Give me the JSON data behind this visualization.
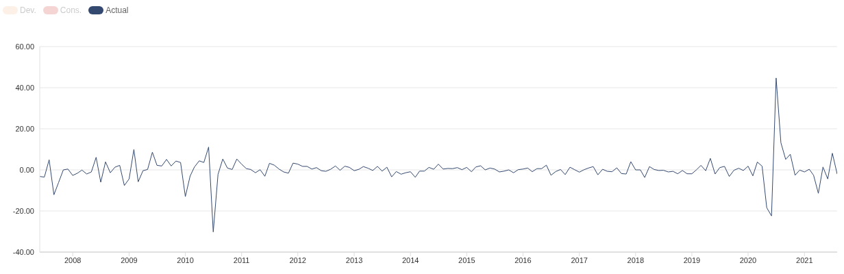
{
  "chart_data": {
    "type": "line",
    "x": [
      "2007-06",
      "2007-07",
      "2007-08",
      "2007-09",
      "2007-10",
      "2007-11",
      "2007-12",
      "2008-01",
      "2008-02",
      "2008-03",
      "2008-04",
      "2008-05",
      "2008-06",
      "2008-07",
      "2008-08",
      "2008-09",
      "2008-10",
      "2008-11",
      "2008-12",
      "2009-01",
      "2009-02",
      "2009-03",
      "2009-04",
      "2009-05",
      "2009-06",
      "2009-07",
      "2009-08",
      "2009-09",
      "2009-10",
      "2009-11",
      "2009-12",
      "2010-01",
      "2010-02",
      "2010-03",
      "2010-04",
      "2010-05",
      "2010-06",
      "2010-07",
      "2010-08",
      "2010-09",
      "2010-10",
      "2010-11",
      "2010-12",
      "2011-01",
      "2011-02",
      "2011-03",
      "2011-04",
      "2011-05",
      "2011-06",
      "2011-07",
      "2011-08",
      "2011-09",
      "2011-10",
      "2011-11",
      "2011-12",
      "2012-01",
      "2012-02",
      "2012-03",
      "2012-04",
      "2012-05",
      "2012-06",
      "2012-07",
      "2012-08",
      "2012-09",
      "2012-10",
      "2012-11",
      "2012-12",
      "2013-01",
      "2013-02",
      "2013-03",
      "2013-04",
      "2013-05",
      "2013-06",
      "2013-07",
      "2013-08",
      "2013-09",
      "2013-10",
      "2013-11",
      "2013-12",
      "2014-01",
      "2014-02",
      "2014-03",
      "2014-04",
      "2014-05",
      "2014-06",
      "2014-07",
      "2014-08",
      "2014-09",
      "2014-10",
      "2014-11",
      "2014-12",
      "2015-01",
      "2015-02",
      "2015-03",
      "2015-04",
      "2015-05",
      "2015-06",
      "2015-07",
      "2015-08",
      "2015-09",
      "2015-10",
      "2015-11",
      "2015-12",
      "2016-01",
      "2016-02",
      "2016-03",
      "2016-04",
      "2016-05",
      "2016-06",
      "2016-07",
      "2016-08",
      "2016-09",
      "2016-10",
      "2016-11",
      "2016-12",
      "2017-01",
      "2017-02",
      "2017-03",
      "2017-04",
      "2017-05",
      "2017-06",
      "2017-07",
      "2017-08",
      "2017-09",
      "2017-10",
      "2017-11",
      "2017-12",
      "2018-01",
      "2018-02",
      "2018-03",
      "2018-04",
      "2018-05",
      "2018-06",
      "2018-07",
      "2018-08",
      "2018-09",
      "2018-10",
      "2018-11",
      "2018-12",
      "2019-01",
      "2019-02",
      "2019-03",
      "2019-04",
      "2019-05",
      "2019-06",
      "2019-07",
      "2019-08",
      "2019-09",
      "2019-10",
      "2019-11",
      "2019-12",
      "2020-01",
      "2020-02",
      "2020-03",
      "2020-04",
      "2020-05",
      "2020-06",
      "2020-07",
      "2020-08",
      "2020-09",
      "2020-10",
      "2020-11",
      "2020-12",
      "2021-01",
      "2021-02",
      "2021-03",
      "2021-04",
      "2021-05",
      "2021-06",
      "2021-07",
      "2021-08"
    ],
    "series": [
      {
        "name": "Dev.",
        "color": "#fdf0e6",
        "values": [
          null,
          null,
          null,
          null,
          null,
          null,
          null,
          null,
          null,
          null,
          null,
          null,
          null,
          null,
          null,
          null,
          null,
          null,
          null,
          null,
          null,
          null,
          null,
          null,
          null,
          null,
          null,
          null,
          null,
          null,
          null,
          null,
          null,
          null,
          null,
          null,
          null,
          null,
          null,
          null,
          null,
          null,
          null,
          null,
          null,
          null,
          null,
          null,
          null,
          null,
          null,
          null,
          null,
          null,
          null,
          null,
          null,
          null,
          null,
          null,
          null,
          null,
          null,
          null,
          null,
          null,
          null,
          null,
          null,
          null,
          null,
          null,
          null,
          null,
          null,
          null,
          null,
          null,
          null,
          null,
          null,
          null,
          null,
          null,
          null,
          null,
          null,
          null,
          null,
          null,
          null,
          null,
          null,
          null,
          null,
          null,
          null,
          null,
          null,
          null,
          null,
          null,
          null,
          null,
          null,
          null,
          null,
          null,
          null,
          null,
          null,
          null,
          null,
          null,
          null,
          null,
          null,
          null,
          null,
          null,
          null,
          null,
          null,
          null,
          null,
          null,
          null,
          null,
          null,
          null,
          null,
          null,
          null,
          null,
          null,
          null,
          null,
          null,
          null,
          null,
          null,
          null,
          null,
          null,
          null,
          null,
          null,
          null,
          null,
          null,
          null,
          null,
          null,
          null,
          null,
          null,
          null,
          null,
          null,
          null,
          null,
          null,
          null,
          null,
          null,
          null,
          null,
          null,
          null,
          null,
          null
        ]
      },
      {
        "name": "Cons.",
        "color": "#f5d5d3",
        "values": [
          null,
          null,
          null,
          null,
          null,
          null,
          null,
          null,
          null,
          null,
          null,
          null,
          null,
          null,
          null,
          null,
          null,
          null,
          null,
          null,
          null,
          null,
          null,
          null,
          null,
          null,
          null,
          null,
          null,
          null,
          null,
          null,
          null,
          null,
          null,
          null,
          null,
          null,
          null,
          null,
          null,
          null,
          null,
          null,
          null,
          null,
          null,
          null,
          null,
          null,
          null,
          null,
          null,
          null,
          null,
          null,
          null,
          null,
          null,
          null,
          null,
          null,
          null,
          null,
          null,
          null,
          null,
          null,
          null,
          null,
          null,
          null,
          null,
          null,
          null,
          null,
          null,
          null,
          null,
          null,
          null,
          null,
          null,
          null,
          null,
          null,
          null,
          null,
          null,
          null,
          null,
          null,
          null,
          null,
          null,
          null,
          null,
          null,
          null,
          null,
          null,
          null,
          null,
          null,
          null,
          null,
          null,
          null,
          null,
          null,
          null,
          null,
          null,
          null,
          null,
          null,
          null,
          null,
          null,
          null,
          null,
          null,
          null,
          null,
          null,
          null,
          null,
          null,
          null,
          null,
          null,
          null,
          null,
          null,
          null,
          null,
          null,
          null,
          null,
          null,
          null,
          null,
          null,
          null,
          null,
          null,
          null,
          null,
          null,
          null,
          null,
          null,
          null,
          null,
          null,
          null,
          null,
          null,
          null,
          null,
          null,
          null,
          null,
          null,
          null,
          null,
          null,
          null,
          null,
          null,
          null
        ]
      },
      {
        "name": "Actual",
        "color": "#34496f",
        "values": [
          -3.2,
          -3.5,
          4.9,
          -12.1,
          -6.2,
          0.0,
          0.4,
          -2.7,
          -1.6,
          -0.1,
          -2.0,
          -1.0,
          6.1,
          -6.0,
          3.9,
          -1.4,
          1.3,
          2.2,
          -7.6,
          -4.4,
          9.9,
          -5.8,
          -0.4,
          0.2,
          8.6,
          2.2,
          1.9,
          5.1,
          1.9,
          4.3,
          3.6,
          -13.0,
          -3.0,
          1.4,
          4.4,
          3.6,
          11.1,
          -30.2,
          -2.2,
          5.3,
          0.9,
          0.2,
          5.3,
          2.8,
          0.6,
          0.2,
          -1.4,
          0.1,
          -3.1,
          3.2,
          2.3,
          0.4,
          -1.0,
          -1.6,
          3.3,
          2.8,
          1.7,
          1.7,
          0.4,
          1.1,
          -0.4,
          -0.7,
          0.3,
          1.9,
          -0.2,
          1.8,
          1.2,
          -0.4,
          0.3,
          1.6,
          0.8,
          -0.3,
          1.7,
          -0.6,
          1.3,
          -3.4,
          -0.8,
          -2.1,
          -1.4,
          -0.9,
          -3.6,
          -0.6,
          -0.6,
          1.2,
          0.3,
          2.8,
          0.4,
          0.7,
          0.6,
          1.1,
          0.1,
          1.2,
          -0.9,
          1.4,
          2.0,
          0.0,
          0.9,
          0.4,
          -1.0,
          -0.6,
          0.0,
          -1.4,
          0.1,
          0.4,
          0.9,
          -0.9,
          0.6,
          0.6,
          2.3,
          -2.6,
          -0.8,
          0.2,
          -2.3,
          1.3,
          0.1,
          -1.1,
          0.1,
          0.9,
          1.6,
          -2.4,
          0.3,
          -0.7,
          -0.9,
          1.0,
          -1.8,
          -2.0,
          4.0,
          0.0,
          0.0,
          -3.7,
          1.6,
          0.2,
          -0.3,
          -0.2,
          -1.0,
          -0.7,
          -1.9,
          -0.3,
          -1.9,
          -1.9,
          0.1,
          2.2,
          -0.4,
          5.6,
          -2.0,
          1.1,
          1.7,
          -3.2,
          -0.2,
          0.8,
          -0.3,
          1.8,
          -2.9,
          3.8,
          1.8,
          -18.4,
          -22.4,
          44.7,
          13.2,
          5.1,
          7.6,
          -2.6,
          -0.1,
          -1.0,
          0.3,
          -2.6,
          -11.4,
          1.4,
          -4.4,
          8.1,
          -2.0
        ]
      }
    ],
    "xlim": [
      "2007-06",
      "2021-08"
    ],
    "xticks": [
      "2008",
      "2009",
      "2010",
      "2011",
      "2012",
      "2013",
      "2014",
      "2015",
      "2016",
      "2017",
      "2018",
      "2019",
      "2020",
      "2021"
    ],
    "ylim": [
      -40,
      60
    ],
    "yticks": [
      {
        "value": -40,
        "label": "-40.00"
      },
      {
        "value": -20,
        "label": "-20.00"
      },
      {
        "value": 0,
        "label": "0.00"
      },
      {
        "value": 20,
        "label": "20.00"
      },
      {
        "value": 40,
        "label": "40.00"
      },
      {
        "value": 60,
        "label": "60.00"
      }
    ],
    "grid": "y",
    "legend": "top left",
    "marker": "none",
    "line_style": "solid"
  }
}
